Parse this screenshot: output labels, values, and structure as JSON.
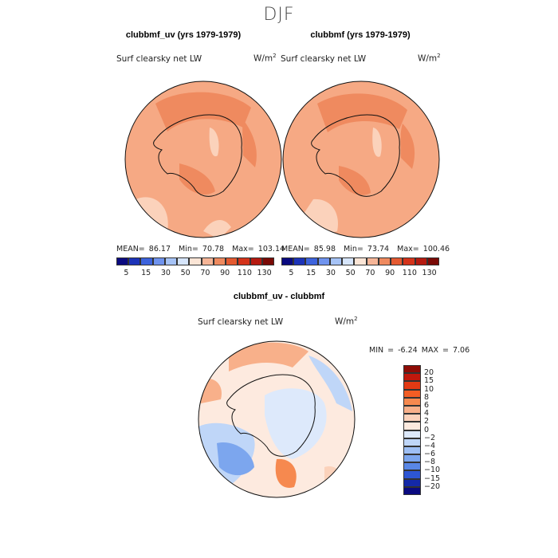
{
  "season_title": "DJF",
  "chart_data": [
    {
      "type": "heatmap",
      "panel": "top-left",
      "title": "clubbmf_uv (yrs 1979-1979)",
      "variable": "Surf clearsky net LW",
      "units_base": "W/m",
      "units_exp": "2",
      "stats": {
        "mean_label": "MEAN=",
        "mean": "86.17",
        "min_label": "Min=",
        "min": "70.78",
        "max_label": "Max=",
        "max": "103.14"
      },
      "colorbar_levels": [
        "5",
        "15",
        "30",
        "50",
        "70",
        "90",
        "110",
        "130"
      ],
      "colorbar_colors": [
        "#0a0a80",
        "#1c33b8",
        "#3d63dc",
        "#6f93ee",
        "#a6c3f6",
        "#d6e5fb",
        "#fbe5d6",
        "#f6b597",
        "#ef8a5f",
        "#e45a31",
        "#d4331a",
        "#b51a10",
        "#7a0a06"
      ]
    },
    {
      "type": "heatmap",
      "panel": "top-right",
      "title": "clubbmf (yrs 1979-1979)",
      "variable": "Surf clearsky net LW",
      "units_base": "W/m",
      "units_exp": "2",
      "stats": {
        "mean_label": "MEAN=",
        "mean": "85.98",
        "min_label": "Min=",
        "min": "73.74",
        "max_label": "Max=",
        "max": "100.46"
      },
      "colorbar_levels": [
        "5",
        "15",
        "30",
        "50",
        "70",
        "90",
        "110",
        "130"
      ],
      "colorbar_colors": [
        "#0a0a80",
        "#1c33b8",
        "#3d63dc",
        "#6f93ee",
        "#a6c3f6",
        "#d6e5fb",
        "#fbe5d6",
        "#f6b597",
        "#ef8a5f",
        "#e45a31",
        "#d4331a",
        "#b51a10",
        "#7a0a06"
      ]
    },
    {
      "type": "heatmap",
      "panel": "bottom-difference",
      "title": "clubbmf_uv - clubbmf",
      "variable": "Surf clearsky net LW",
      "units_base": "W/m",
      "units_exp": "2",
      "stats": {
        "min_label": "MIN =",
        "min": "-6.24",
        "max_label": "MAX =",
        "max": "7.06"
      },
      "colorbar_levels": [
        "20",
        "15",
        "10",
        "8",
        "6",
        "4",
        "2",
        "0",
        "−2",
        "−4",
        "−6",
        "−8",
        "−10",
        "−15",
        "−20"
      ],
      "colorbar_colors": [
        "#8e0c06",
        "#c0180c",
        "#e33a14",
        "#f25d24",
        "#f6894f",
        "#f8b08a",
        "#fbd2bb",
        "#fdeadf",
        "#dde9fb",
        "#bfd6f8",
        "#9ebff4",
        "#7ca6ee",
        "#5987e6",
        "#2d56d4",
        "#1429a8",
        "#0a0a80"
      ]
    }
  ]
}
